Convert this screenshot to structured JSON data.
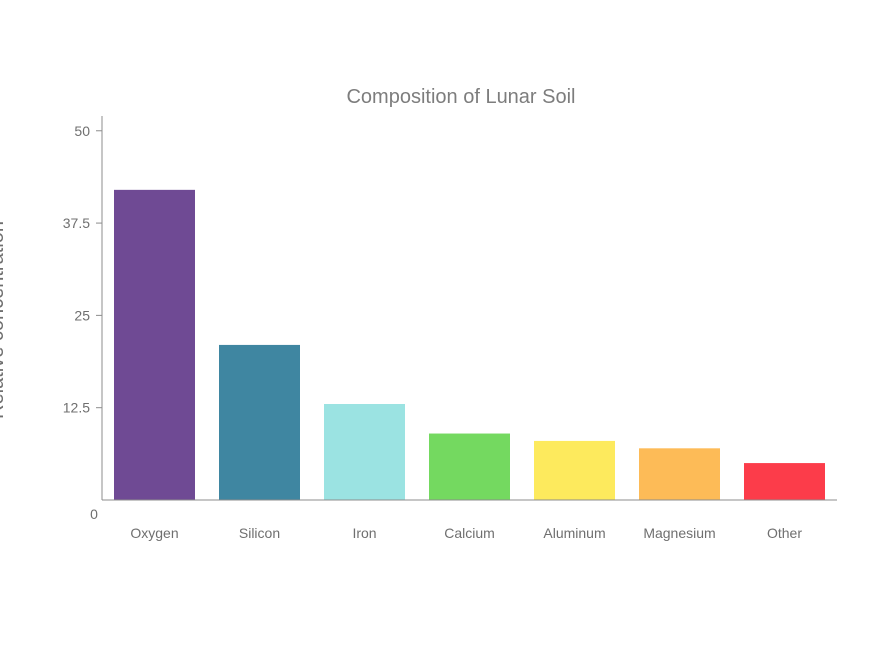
{
  "chart_data": {
    "type": "bar",
    "title": "Composition of Lunar Soil",
    "xlabel": "",
    "ylabel": "Relative concentration",
    "categories": [
      "Oxygen",
      "Silicon",
      "Iron",
      "Calcium",
      "Aluminum",
      "Magnesium",
      "Other"
    ],
    "values": [
      42,
      21,
      13,
      9,
      8,
      7,
      5
    ],
    "colors": [
      "#6f4a94",
      "#3f86a1",
      "#9be3e2",
      "#74d960",
      "#fdea5d",
      "#fdbb57",
      "#fc3c4a"
    ],
    "ylim": [
      0,
      52
    ],
    "yticks": [
      0,
      12.5,
      25,
      37.5,
      50
    ],
    "ytick_labels": [
      "0",
      "12.5",
      "25",
      "37.5",
      "50"
    ],
    "grid": false,
    "legend": "none",
    "axis_color": "#8c8c8c"
  }
}
